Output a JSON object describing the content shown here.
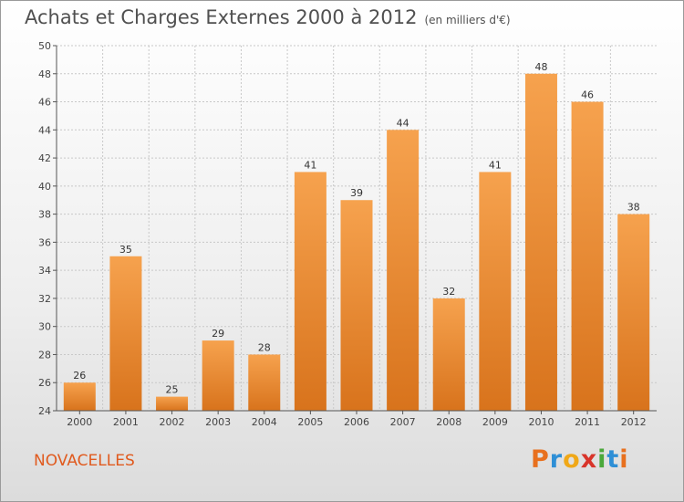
{
  "header": {
    "title": "Achats et Charges Externes 2000 à 2012",
    "unit": "(en milliers d'€)"
  },
  "footer": {
    "commune": "NOVACELLES",
    "logo_text": "Proxiti"
  },
  "colors": {
    "bar_top": "#f6a24e",
    "bar_bottom": "#d8731c",
    "axis": "#555555",
    "grid": "#c8c8c8"
  },
  "chart_data": {
    "type": "bar",
    "title": "Achats et Charges Externes 2000 à 2012",
    "subtitle": "(en milliers d'€)",
    "categories": [
      "2000",
      "2001",
      "2002",
      "2003",
      "2004",
      "2005",
      "2006",
      "2007",
      "2008",
      "2009",
      "2010",
      "2011",
      "2012"
    ],
    "values": [
      26,
      35,
      25,
      29,
      28,
      41,
      39,
      44,
      32,
      41,
      48,
      46,
      38
    ],
    "ylim": [
      24,
      50
    ],
    "yticks": [
      24,
      26,
      28,
      30,
      32,
      34,
      36,
      38,
      40,
      42,
      44,
      46,
      48,
      50
    ],
    "grid": true,
    "legend": "none"
  }
}
